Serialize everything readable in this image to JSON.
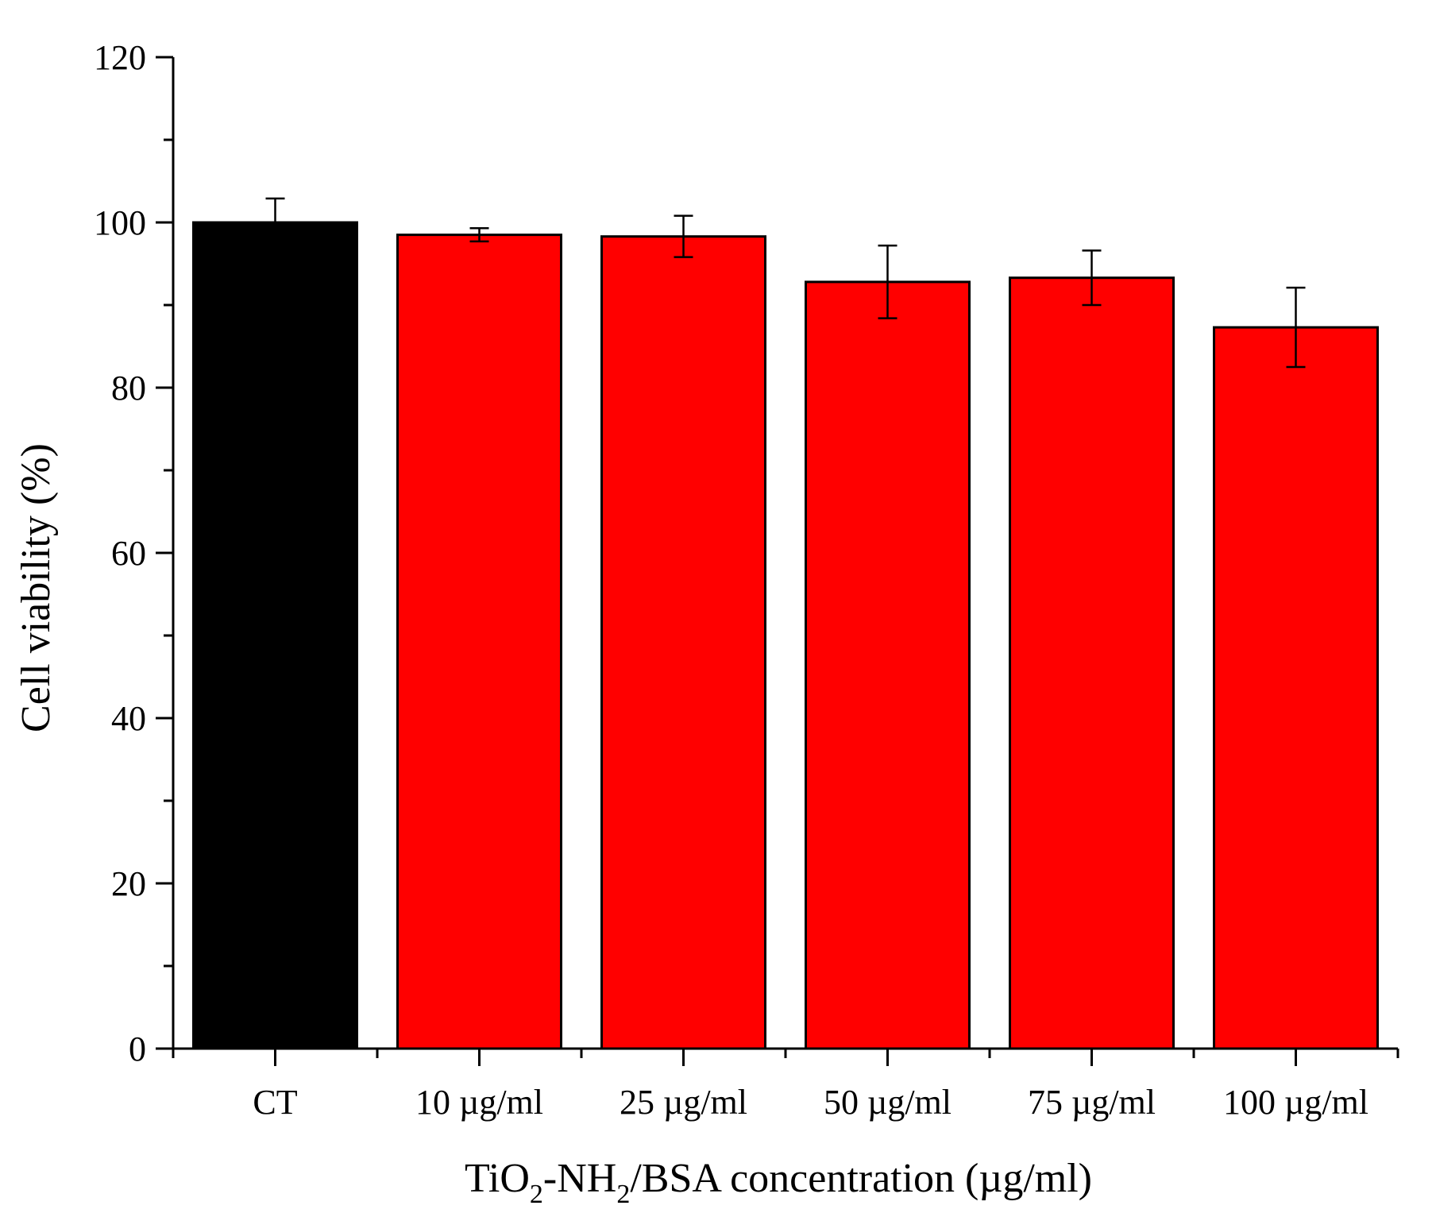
{
  "chart_data": {
    "type": "bar",
    "categories": [
      "CT",
      "10 µg/ml",
      "25 µg/ml",
      "50 µg/ml",
      "75 µg/ml",
      "100 µg/ml"
    ],
    "values": [
      100,
      98.5,
      98.3,
      92.8,
      93.3,
      87.3
    ],
    "errors": [
      2.9,
      0.8,
      2.5,
      4.4,
      3.3,
      4.8
    ],
    "bar_colors": [
      "#000000",
      "#ff0000",
      "#ff0000",
      "#ff0000",
      "#ff0000",
      "#ff0000"
    ],
    "ylabel": "Cell viability (%)",
    "xlabel": {
      "part1": "TiO",
      "sub1": "2",
      "part2": "-NH",
      "sub2": "2",
      "part3": "/BSA concentration (µg/ml)"
    },
    "ylim": [
      0,
      120
    ],
    "yticks": [
      0,
      20,
      40,
      60,
      80,
      100,
      120
    ],
    "grid": false
  }
}
